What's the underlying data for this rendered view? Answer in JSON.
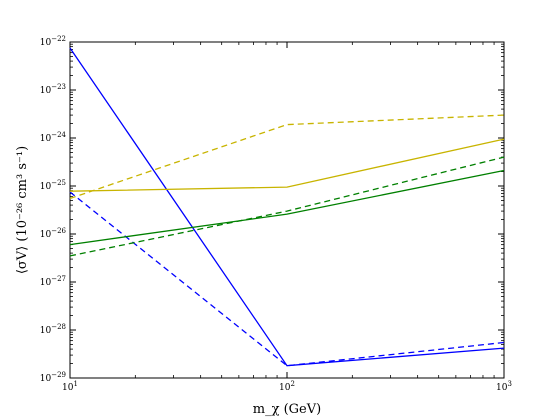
{
  "chart_data": {
    "type": "line",
    "xscale": "log",
    "yscale": "log",
    "xlim": [
      10,
      1000
    ],
    "ylim": [
      1e-29,
      1e-22
    ],
    "grid": false,
    "xlabel": "m_χ (GeV)",
    "ylabel": "⟨σV⟩ (10⁻²⁶ cm³ s⁻¹)",
    "x_ticks": [
      {
        "value": 10,
        "base": "10",
        "exp": "1"
      },
      {
        "value": 100,
        "base": "10",
        "exp": "2"
      },
      {
        "value": 1000,
        "base": "10",
        "exp": "3"
      }
    ],
    "y_ticks": [
      {
        "value": 1e-29,
        "base": "10",
        "exp": "−29"
      },
      {
        "value": 1e-28,
        "base": "10",
        "exp": "−28"
      },
      {
        "value": 1e-27,
        "base": "10",
        "exp": "−27"
      },
      {
        "value": 1e-26,
        "base": "10",
        "exp": "−26"
      },
      {
        "value": 1e-25,
        "base": "10",
        "exp": "−25"
      },
      {
        "value": 1e-24,
        "base": "10",
        "exp": "−24"
      },
      {
        "value": 1e-23,
        "base": "10",
        "exp": "−23"
      },
      {
        "value": 1e-22,
        "base": "10",
        "exp": "−22"
      }
    ],
    "series": [
      {
        "color": "#0000ff",
        "style": "solid",
        "x": [
          10,
          100,
          1000
        ],
        "y": [
          7.5e-23,
          1.8e-29,
          4.2e-29
        ]
      },
      {
        "color": "#0000ff",
        "style": "dashed",
        "x": [
          10,
          100,
          1000
        ],
        "y": [
          7.5e-26,
          1.8e-29,
          5.5e-29
        ]
      },
      {
        "color": "#c8b400",
        "style": "solid",
        "x": [
          10,
          100,
          1000
        ],
        "y": [
          7.8e-26,
          9.5e-26,
          9.5e-25
        ]
      },
      {
        "color": "#c8b400",
        "style": "dashed",
        "x": [
          10,
          100,
          1000
        ],
        "y": [
          5.5e-26,
          1.9e-24,
          3e-24
        ]
      },
      {
        "color": "#008000",
        "style": "solid",
        "x": [
          10,
          100,
          1000
        ],
        "y": [
          6e-27,
          2.6e-26,
          2.1e-25
        ]
      },
      {
        "color": "#008000",
        "style": "dashed",
        "x": [
          10,
          100,
          1000
        ],
        "y": [
          3.5e-27,
          3e-26,
          4e-25
        ]
      }
    ]
  }
}
